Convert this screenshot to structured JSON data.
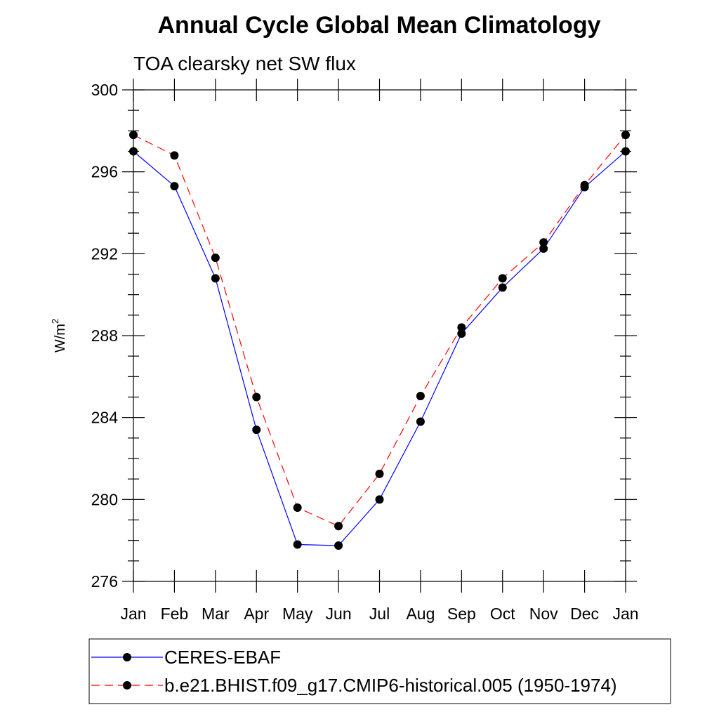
{
  "chart_data": {
    "type": "line",
    "title": "Annual Cycle Global Mean Climatology",
    "subtitle": "TOA clearsky net SW flux",
    "ylabel": "W/m",
    "ylabel_superscript": "2",
    "xlabel": "",
    "categories": [
      "Jan",
      "Feb",
      "Mar",
      "Apr",
      "May",
      "Jun",
      "Jul",
      "Aug",
      "Sep",
      "Oct",
      "Nov",
      "Dec",
      "Jan"
    ],
    "ylim": [
      276,
      300
    ],
    "yticks": [
      276,
      280,
      284,
      288,
      292,
      296,
      300
    ],
    "yminor_step": 1,
    "grid": false,
    "legend_position": "bottom",
    "series": [
      {
        "name": "CERES-EBAF",
        "color": "#0000ff",
        "style": "solid",
        "values": [
          297.0,
          295.3,
          290.8,
          283.4,
          277.8,
          277.75,
          280.0,
          283.8,
          288.1,
          290.35,
          292.25,
          295.25,
          297.0
        ]
      },
      {
        "name": "b.e21.BHIST.f09_g17.CMIP6-historical.005 (1950-1974)",
        "color": "#ff0000",
        "style": "dashed",
        "values": [
          297.8,
          296.8,
          291.8,
          285.0,
          279.6,
          278.7,
          281.25,
          285.05,
          288.4,
          290.8,
          292.55,
          295.35,
          297.8
        ]
      }
    ]
  }
}
